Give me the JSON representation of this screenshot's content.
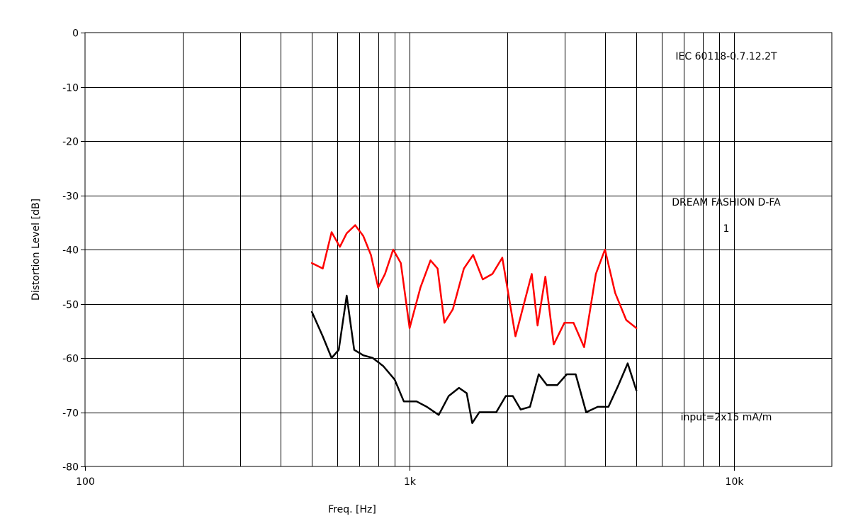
{
  "chart_data": {
    "type": "line",
    "xlabel": "Freq. [Hz]",
    "ylabel": "Distortion Level [dB]",
    "x_scale": "log",
    "xlim": [
      100,
      20000
    ],
    "ylim": [
      -80,
      0
    ],
    "x_ticks": [
      {
        "value": 100,
        "label": "100"
      },
      {
        "value": 1000,
        "label": "1k"
      },
      {
        "value": 10000,
        "label": "10k"
      }
    ],
    "y_ticks": [
      {
        "value": 0,
        "label": "0"
      },
      {
        "value": -10,
        "label": "-10"
      },
      {
        "value": -20,
        "label": "-20"
      },
      {
        "value": -30,
        "label": "-30"
      },
      {
        "value": -40,
        "label": "-40"
      },
      {
        "value": -50,
        "label": "-50"
      },
      {
        "value": -60,
        "label": "-60"
      },
      {
        "value": -70,
        "label": "-70"
      },
      {
        "value": -80,
        "label": "-80"
      }
    ],
    "grid": true,
    "annotations": [
      {
        "text": "IEC 60118-0.7.12.2T",
        "position": "top-right"
      },
      {
        "text": "DREAM FASHION D-FA",
        "position": "middle-right"
      },
      {
        "text": "1",
        "position": "middle-right"
      },
      {
        "text": "input=2x15 mA/m",
        "position": "bottom-right"
      }
    ],
    "series": [
      {
        "color": "#ff0000",
        "points": [
          [
            500,
            -42.5
          ],
          [
            540,
            -43.5
          ],
          [
            575,
            -36.8
          ],
          [
            610,
            -39.5
          ],
          [
            640,
            -37.0
          ],
          [
            680,
            -35.5
          ],
          [
            720,
            -37.5
          ],
          [
            760,
            -41.0
          ],
          [
            800,
            -47.0
          ],
          [
            840,
            -44.5
          ],
          [
            890,
            -40.0
          ],
          [
            940,
            -42.5
          ],
          [
            1000,
            -54.5
          ],
          [
            1080,
            -47.0
          ],
          [
            1160,
            -42.0
          ],
          [
            1220,
            -43.5
          ],
          [
            1280,
            -53.5
          ],
          [
            1360,
            -51.0
          ],
          [
            1470,
            -43.5
          ],
          [
            1570,
            -41.0
          ],
          [
            1680,
            -45.5
          ],
          [
            1800,
            -44.5
          ],
          [
            1930,
            -41.5
          ],
          [
            2120,
            -56.0
          ],
          [
            2380,
            -44.5
          ],
          [
            2480,
            -54.0
          ],
          [
            2620,
            -45.0
          ],
          [
            2780,
            -57.5
          ],
          [
            3000,
            -53.5
          ],
          [
            3200,
            -53.5
          ],
          [
            3450,
            -58.0
          ],
          [
            3750,
            -44.5
          ],
          [
            4000,
            -40.0
          ],
          [
            4300,
            -48.0
          ],
          [
            4650,
            -53.0
          ],
          [
            5000,
            -54.5
          ]
        ]
      },
      {
        "color": "#000000",
        "points": [
          [
            500,
            -51.5
          ],
          [
            540,
            -56.0
          ],
          [
            575,
            -60.0
          ],
          [
            605,
            -58.5
          ],
          [
            640,
            -48.5
          ],
          [
            675,
            -58.5
          ],
          [
            720,
            -59.5
          ],
          [
            770,
            -60.0
          ],
          [
            830,
            -61.5
          ],
          [
            900,
            -64.0
          ],
          [
            960,
            -68.0
          ],
          [
            1050,
            -68.0
          ],
          [
            1130,
            -69.0
          ],
          [
            1230,
            -70.5
          ],
          [
            1320,
            -67.0
          ],
          [
            1420,
            -65.5
          ],
          [
            1500,
            -66.5
          ],
          [
            1560,
            -72.0
          ],
          [
            1640,
            -70.0
          ],
          [
            1730,
            -70.0
          ],
          [
            1850,
            -70.0
          ],
          [
            1980,
            -67.0
          ],
          [
            2080,
            -67.0
          ],
          [
            2200,
            -69.5
          ],
          [
            2350,
            -69.0
          ],
          [
            2500,
            -63.0
          ],
          [
            2650,
            -65.0
          ],
          [
            2850,
            -65.0
          ],
          [
            3050,
            -63.0
          ],
          [
            3250,
            -63.0
          ],
          [
            3500,
            -70.0
          ],
          [
            3800,
            -69.0
          ],
          [
            4100,
            -69.0
          ],
          [
            4400,
            -65.0
          ],
          [
            4700,
            -61.0
          ],
          [
            5000,
            -66.0
          ]
        ]
      }
    ]
  }
}
